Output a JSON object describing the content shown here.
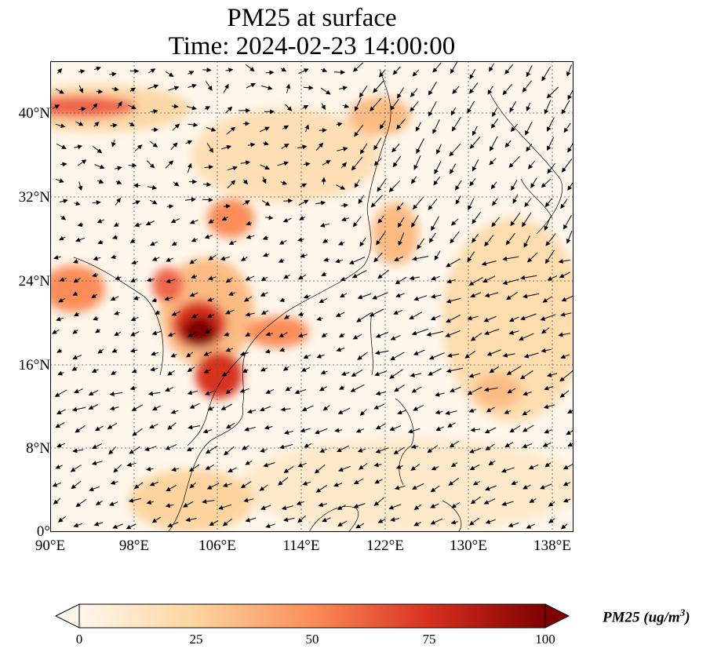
{
  "title": {
    "line1": "PM25 at surface",
    "line2": "Time: 2024-02-23 14:00:00"
  },
  "map": {
    "projection": "PlateCarree",
    "lon_range": [
      90,
      139
    ],
    "lat_range": [
      0,
      45
    ],
    "gridlines": "dotted",
    "coastlines": true,
    "borders": true,
    "field": "PM25 surface concentration",
    "overlay": "wind vectors (quiver)",
    "lat_ticks": [
      "40°N",
      "32°N",
      "24°N",
      "16°N",
      "8°N",
      "0°"
    ],
    "lon_ticks": [
      "90°E",
      "98°E",
      "106°E",
      "114°E",
      "122°E",
      "130°E",
      "138°E"
    ]
  },
  "colorbar": {
    "label": "PM25 (ug/m",
    "label_sup": "3",
    "label_close": ")",
    "colormap": "OrRd",
    "extend": "both",
    "ticks": [
      "0",
      "25",
      "50",
      "75",
      "100"
    ],
    "range": [
      0,
      100
    ],
    "colors": [
      "#fff7ec",
      "#fdd49e",
      "#fc8d59",
      "#d7301f",
      "#7f0000"
    ]
  }
}
